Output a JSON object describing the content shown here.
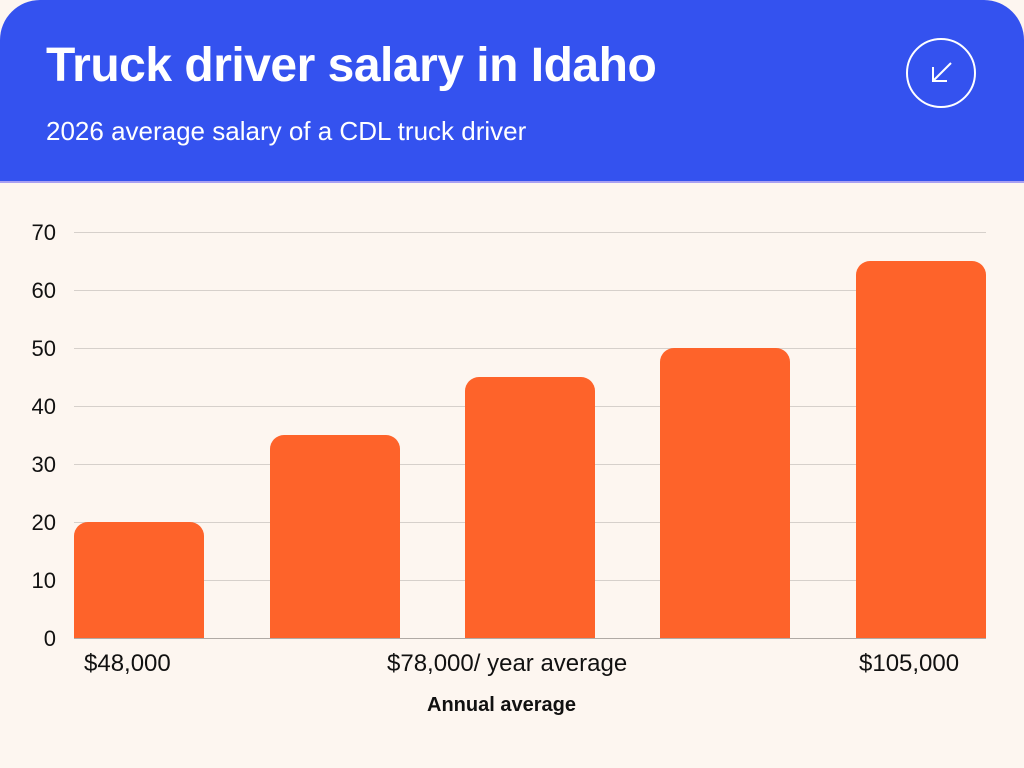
{
  "header": {
    "title": "Truck driver salary in Idaho",
    "subtitle": "2026 average salary of a CDL truck driver",
    "icon": "arrow-down-left-icon",
    "background_color": "#3452ef"
  },
  "chart_data": {
    "type": "bar",
    "title": "Truck driver salary in Idaho",
    "subtitle": "2026 average salary of a CDL truck driver",
    "categories": [
      "$48,000",
      "",
      "$78,000/ year average",
      "",
      "$105,000"
    ],
    "values": [
      20,
      35,
      45,
      50,
      65
    ],
    "xlabel": "Annual average",
    "ylabel": "",
    "ylim": [
      0,
      70
    ],
    "yticks": [
      0,
      10,
      20,
      30,
      40,
      50,
      60,
      70
    ],
    "grid": true,
    "legend": null,
    "bar_color": "#fe632a"
  },
  "axis": {
    "yticks": [
      "70",
      "60",
      "50",
      "40",
      "30",
      "20",
      "10",
      "0"
    ],
    "xlabels": [
      "$48,000",
      "$78,000/ year average",
      "$105,000"
    ],
    "xtitle": "Annual average"
  }
}
